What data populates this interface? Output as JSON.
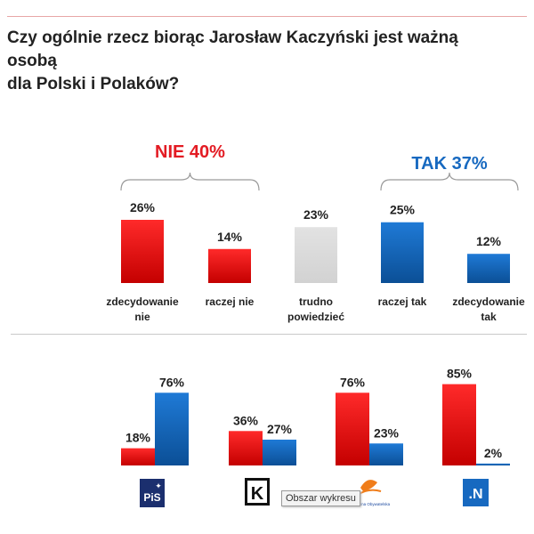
{
  "title_lines": [
    "Czy ogólnie rzecz biorąc Jarosław Kaczyński jest ważną osobą",
    "dla Polski i Polaków?"
  ],
  "tooltip": "Obszar wykresu",
  "colors": {
    "red": "#e81414",
    "blue": "#1569b8",
    "gray": "#d9d9d9",
    "nie": "#e31b23",
    "tak": "#1769c0"
  },
  "chart_data": [
    {
      "type": "bar",
      "title": "Czy ogólnie rzecz biorąc Jarosław Kaczyński jest ważną osobą dla Polski i Polaków?",
      "categories": [
        [
          "zdecydowanie",
          "nie"
        ],
        [
          "raczej nie"
        ],
        [
          "trudno",
          "powiedzieć"
        ],
        [
          "raczej tak"
        ],
        [
          "zdecydowanie",
          "tak"
        ]
      ],
      "values": [
        26,
        14,
        23,
        25,
        12
      ],
      "labels": [
        "26%",
        "14%",
        "23%",
        "25%",
        "12%"
      ],
      "colors": [
        "red",
        "red",
        "gray",
        "blue",
        "blue"
      ],
      "groups": [
        {
          "label": "NIE 40%",
          "color": "nie",
          "covers": [
            0,
            1
          ]
        },
        {
          "label": "TAK 37%",
          "color": "tak",
          "covers": [
            3,
            4
          ]
        }
      ],
      "ylim": [
        0,
        30
      ]
    },
    {
      "type": "bar",
      "categories": [
        "PiS",
        "Kukiz'15",
        "Platforma Obywatelska",
        "Nowoczesna"
      ],
      "logos": [
        "PiS",
        "K",
        "Platforma Obywatelska",
        ".N"
      ],
      "series": [
        {
          "name": "nie",
          "color": "red",
          "values": [
            18,
            36,
            76,
            85
          ],
          "labels": [
            "18%",
            "36%",
            "76%",
            "85%"
          ]
        },
        {
          "name": "tak",
          "color": "blue",
          "values": [
            76,
            27,
            23,
            2
          ],
          "labels": [
            "76%",
            "27%",
            "23%",
            "2%"
          ]
        }
      ],
      "ylim": [
        0,
        100
      ]
    }
  ]
}
